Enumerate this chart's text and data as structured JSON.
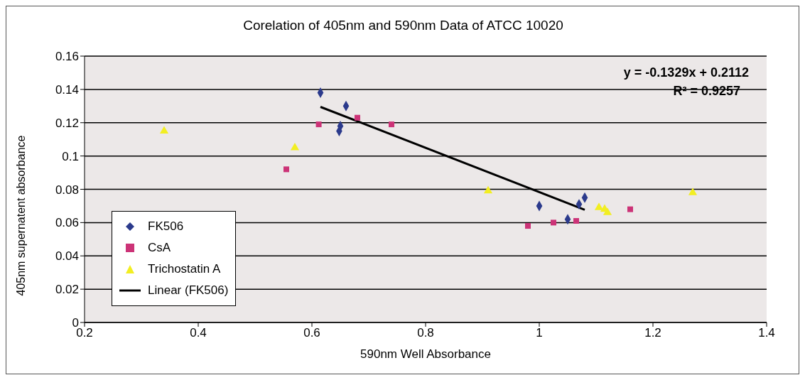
{
  "chart_data": {
    "type": "scatter",
    "title": "Corelation of 405nm and 590nm Data of ATCC 10020",
    "xlabel": "590nm Well Absorbance",
    "ylabel": "405nm supernatent absorbance",
    "xlim": [
      0.2,
      1.4
    ],
    "xticks": [
      0.2,
      0.4,
      0.6,
      0.8,
      1,
      1.2,
      1.4
    ],
    "ylim": [
      0,
      0.16
    ],
    "yticks": [
      0,
      0.02,
      0.04,
      0.06,
      0.08,
      0.1,
      0.12,
      0.14,
      0.16
    ],
    "grid": "y",
    "legend": "bottom left",
    "annotations": [
      "y = -0.1329x + 0.2112",
      "R² = 0.9257"
    ],
    "series": [
      {
        "name": "FK506",
        "color": "#2b3a8c",
        "marker": "diamond",
        "x": [
          0.615,
          0.66,
          0.65,
          0.648,
          1.0,
          1.05,
          1.07,
          1.08
        ],
        "values": [
          0.138,
          0.13,
          0.118,
          0.115,
          0.07,
          0.062,
          0.071,
          0.075
        ]
      },
      {
        "name": "CsA",
        "color": "#cc3377",
        "marker": "square",
        "x": [
          0.612,
          0.68,
          0.74,
          0.555,
          0.98,
          1.025,
          1.065,
          1.16
        ],
        "values": [
          0.119,
          0.123,
          0.119,
          0.092,
          0.058,
          0.06,
          0.061,
          0.068
        ]
      },
      {
        "name": "Trichostatin A",
        "color": "#f2ee22",
        "marker": "triangle",
        "x": [
          0.34,
          0.57,
          0.91,
          1.105,
          1.115,
          1.12,
          1.27
        ],
        "values": [
          0.115,
          0.105,
          0.079,
          0.069,
          0.068,
          0.066,
          0.078
        ]
      },
      {
        "name": "Linear (FK506)",
        "type": "line",
        "color": "#000000",
        "marker": "none",
        "line_style": "solid",
        "x": [
          0.615,
          1.08
        ],
        "values": [
          0.1295,
          0.0677
        ]
      }
    ]
  }
}
